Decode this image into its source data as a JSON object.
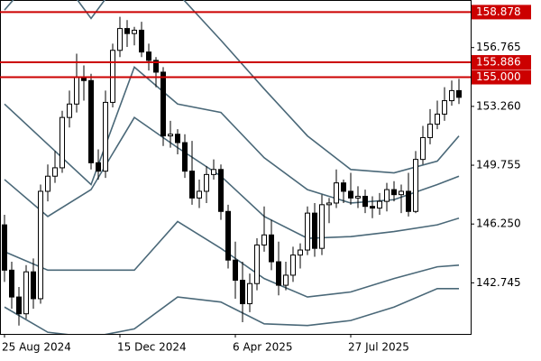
{
  "chart_data": {
    "type": "candlestick",
    "categories": [
      "25 Aug 2024",
      null,
      null,
      null,
      null,
      null,
      null,
      null,
      null,
      null,
      null,
      null,
      null,
      null,
      null,
      null,
      "15 Dec 2024",
      null,
      null,
      null,
      null,
      null,
      null,
      null,
      null,
      null,
      null,
      null,
      null,
      null,
      null,
      null,
      "6 Apr 2025",
      null,
      null,
      null,
      null,
      null,
      null,
      null,
      null,
      null,
      null,
      null,
      null,
      null,
      null,
      null,
      "27 Jul 2025",
      null,
      null,
      null,
      null,
      null,
      null,
      null,
      null,
      null,
      null,
      null,
      null,
      null,
      null,
      null
    ],
    "open": [
      146.2,
      143.5,
      141.9,
      140.9,
      143.4,
      141.8,
      148.2,
      149.1,
      149.6,
      152.6,
      153.4,
      155.0,
      154.8,
      149.9,
      149.4,
      153.5,
      156.6,
      157.9,
      157.6,
      157.8,
      156.5,
      156.0,
      155.3,
      151.5,
      151.6,
      151.1,
      149.4,
      147.8,
      148.2,
      149.2,
      149.5,
      147.0,
      144.1,
      142.9,
      141.5,
      142.7,
      145.0,
      145.6,
      144.0,
      142.6,
      143.2,
      144.4,
      144.7,
      146.9,
      144.8,
      147.4,
      147.5,
      148.7,
      148.2,
      147.8,
      147.9,
      147.3,
      147.2,
      147.6,
      148.3,
      148.0,
      148.2,
      147.0,
      150.1,
      151.4,
      152.2,
      152.8,
      153.6,
      154.2
    ],
    "high": [
      146.8,
      144.0,
      142.5,
      143.8,
      144.2,
      148.6,
      149.8,
      150.6,
      153.0,
      154.2,
      156.4,
      155.7,
      155.2,
      150.7,
      154.2,
      157.0,
      158.6,
      158.4,
      158.0,
      158.3,
      157.0,
      156.2,
      155.6,
      152.4,
      151.9,
      151.6,
      151.2,
      148.9,
      149.7,
      150.1,
      149.8,
      147.4,
      145.2,
      144.0,
      143.3,
      145.4,
      147.3,
      146.5,
      145.2,
      144.0,
      144.9,
      145.1,
      147.3,
      147.5,
      148.0,
      147.8,
      149.5,
      148.9,
      149.3,
      148.5,
      148.3,
      147.9,
      148.1,
      148.7,
      148.8,
      148.6,
      149.3,
      150.6,
      152.1,
      153.1,
      153.6,
      154.4,
      154.8,
      154.9
    ],
    "low": [
      142.8,
      141.2,
      140.2,
      140.6,
      141.2,
      141.5,
      147.6,
      148.7,
      149.3,
      152.0,
      152.9,
      153.6,
      149.5,
      148.9,
      149.0,
      153.2,
      156.2,
      156.8,
      156.9,
      156.2,
      155.4,
      154.4,
      150.9,
      150.8,
      150.4,
      149.0,
      147.4,
      147.2,
      147.5,
      148.9,
      146.5,
      143.6,
      141.8,
      140.4,
      141.0,
      142.3,
      144.6,
      143.5,
      142.0,
      142.3,
      142.8,
      143.6,
      144.4,
      144.3,
      144.4,
      146.3,
      147.2,
      147.5,
      147.4,
      147.2,
      146.9,
      146.6,
      146.8,
      147.0,
      147.6,
      146.9,
      146.7,
      146.9,
      149.8,
      151.0,
      151.9,
      152.4,
      153.3,
      153.4
    ],
    "close": [
      143.5,
      141.9,
      140.9,
      143.4,
      141.8,
      148.2,
      149.1,
      149.6,
      152.6,
      153.4,
      155.0,
      154.8,
      149.9,
      149.4,
      153.5,
      156.6,
      157.9,
      157.6,
      157.8,
      156.5,
      156.0,
      155.3,
      151.5,
      151.6,
      151.1,
      149.4,
      147.8,
      148.2,
      149.2,
      149.5,
      147.0,
      144.1,
      142.9,
      141.5,
      142.7,
      145.0,
      145.6,
      144.0,
      142.6,
      143.2,
      144.4,
      144.7,
      146.9,
      144.8,
      147.4,
      147.5,
      148.7,
      148.2,
      147.8,
      147.9,
      147.3,
      147.2,
      147.6,
      148.3,
      148.0,
      148.2,
      147.0,
      150.1,
      151.4,
      152.2,
      152.8,
      153.6,
      154.2,
      153.8
    ],
    "bands": [
      {
        "color": "#4a6878",
        "x": [
          0,
          6,
          12,
          18,
          24,
          30,
          36,
          42,
          48,
          54,
          60,
          63
        ],
        "values": [
          159.0,
          162.0,
          158.5,
          162.0,
          160.0,
          157.2,
          154.3,
          151.5,
          149.5,
          149.3,
          150.0,
          151.5
        ]
      },
      {
        "color": "#4a6878",
        "x": [
          0,
          6,
          12,
          18,
          24,
          30,
          36,
          42,
          48,
          54,
          60,
          63
        ],
        "values": [
          153.4,
          151.0,
          148.6,
          155.6,
          153.4,
          152.9,
          150.2,
          148.3,
          147.5,
          147.7,
          148.6,
          149.1
        ]
      },
      {
        "color": "#4a6878",
        "x": [
          0,
          6,
          12,
          18,
          24,
          30,
          36,
          42,
          48,
          54,
          60,
          63
        ],
        "values": [
          148.9,
          146.7,
          148.3,
          152.6,
          150.8,
          149.1,
          146.7,
          145.4,
          145.5,
          145.8,
          146.2,
          146.6
        ]
      },
      {
        "color": "#4a6878",
        "x": [
          0,
          6,
          12,
          18,
          24,
          30,
          36,
          42,
          48,
          54,
          60,
          63
        ],
        "values": [
          144.6,
          143.5,
          143.5,
          143.5,
          146.4,
          144.8,
          143.0,
          141.9,
          142.2,
          143.0,
          143.7,
          143.8
        ]
      },
      {
        "color": "#4a6878",
        "x": [
          0,
          6,
          12,
          18,
          24,
          30,
          36,
          42,
          48,
          54,
          60,
          63
        ],
        "values": [
          141.3,
          139.8,
          139.5,
          140.0,
          141.9,
          141.6,
          140.3,
          140.2,
          140.5,
          141.3,
          142.4,
          142.4
        ]
      }
    ],
    "levels": [
      158.878,
      155.886,
      {
        "value": 155,
        "label": "155.000"
      }
    ],
    "level_color": "#cc0000",
    "up_color": "#ffffff",
    "down_color": "#000000",
    "edge_color": "#000000",
    "ylim": [
      139.7,
      159.6
    ],
    "yticks": [
      142.745,
      {
        "value": 146.25,
        "label": "146.250"
      },
      149.755,
      {
        "value": 153.26,
        "label": "153.260"
      },
      156.765
    ]
  }
}
